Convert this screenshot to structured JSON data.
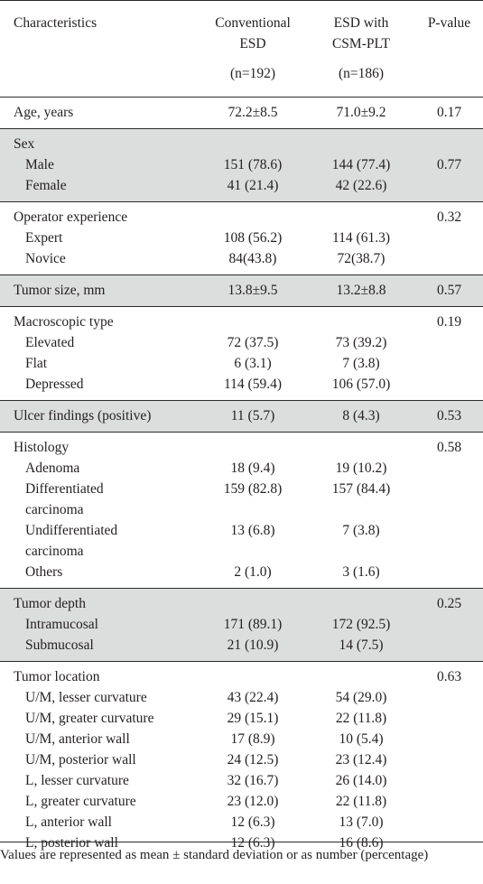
{
  "header": {
    "col1": "Characteristics",
    "col2_line1": "Conventional",
    "col2_line2": "ESD",
    "col2_n": "(n=192)",
    "col3_line1": "ESD with",
    "col3_line2": "CSM-PLT",
    "col3_n": "(n=186)",
    "col4": "P-value"
  },
  "rows": {
    "age": {
      "label": "Age, years",
      "a": "72.2±8.5",
      "b": "71.0±9.2",
      "p": "0.17"
    },
    "sex": {
      "label": "Sex",
      "p": "0.77",
      "male": {
        "label": "Male",
        "a": "151 (78.6)",
        "b": "144 (77.4)"
      },
      "female": {
        "label": "Female",
        "a": "41 (21.4)",
        "b": "42 (22.6)"
      }
    },
    "operator": {
      "label": "Operator experience",
      "p": "0.32",
      "expert": {
        "label": "Expert",
        "a": "108 (56.2)",
        "b": "114 (61.3)"
      },
      "novice": {
        "label": "Novice",
        "a": "84(43.8)",
        "b": "72(38.7)"
      }
    },
    "size": {
      "label": "Tumor size, mm",
      "a": "13.8±9.5",
      "b": "13.2±8.8",
      "p": "0.57"
    },
    "macro": {
      "label": "Macroscopic type",
      "p": "0.19",
      "elevated": {
        "label": "Elevated",
        "a": "72 (37.5)",
        "b": "73 (39.2)"
      },
      "flat": {
        "label": "Flat",
        "a": "6 (3.1)",
        "b": "7 (3.8)"
      },
      "depressed": {
        "label": "Depressed",
        "a": "114 (59.4)",
        "b": "106 (57.0)"
      }
    },
    "ulcer": {
      "label": "Ulcer findings (positive)",
      "a": "11 (5.7)",
      "b": "8 (4.3)",
      "p": "0.53"
    },
    "hist": {
      "label": "Histology",
      "p": "0.58",
      "adenoma": {
        "label": "Adenoma",
        "a": "18 (9.4)",
        "b": "19 (10.2)"
      },
      "diff": {
        "label1": "Differentiated",
        "label2": "carcinoma",
        "a": "159 (82.8)",
        "b": "157 (84.4)"
      },
      "undiff": {
        "label1": "Undifferentiated",
        "label2": "carcinoma",
        "a": "13 (6.8)",
        "b": "7 (3.8)"
      },
      "others": {
        "label": "Others",
        "a": "2 (1.0)",
        "b": "3 (1.6)"
      }
    },
    "depth": {
      "label": "Tumor depth",
      "p": "0.25",
      "intra": {
        "label": "Intramucosal",
        "a": "171 (89.1)",
        "b": "172 (92.5)"
      },
      "sub": {
        "label": "Submucosal",
        "a": "21 (10.9)",
        "b": "14 (7.5)"
      }
    },
    "loc": {
      "label": "Tumor location",
      "p": "0.63",
      "items": [
        {
          "label": "U/M, lesser curvature",
          "a": "43 (22.4)",
          "b": "54 (29.0)"
        },
        {
          "label": "U/M, greater curvature",
          "a": "29 (15.1)",
          "b": "22 (11.8)"
        },
        {
          "label": "U/M, anterior wall",
          "a": "17 (8.9)",
          "b": "10 (5.4)"
        },
        {
          "label": "U/M, posterior wall",
          "a": "24 (12.5)",
          "b": "23 (12.4)"
        },
        {
          "label": "L, lesser curvature",
          "a": "32 (16.7)",
          "b": "26 (14.0)"
        },
        {
          "label": "L, greater curvature",
          "a": "23 (12.0)",
          "b": "22 (11.8)"
        },
        {
          "label": "L, anterior wall",
          "a": "12 (6.3)",
          "b": "13 (7.0)"
        },
        {
          "label": "L, posterior wall",
          "a": "12 (6.3)",
          "b": "16 (8.6)"
        }
      ]
    }
  },
  "footnote": "Values are represented as mean ± standard deviation or as number (percentage)"
}
